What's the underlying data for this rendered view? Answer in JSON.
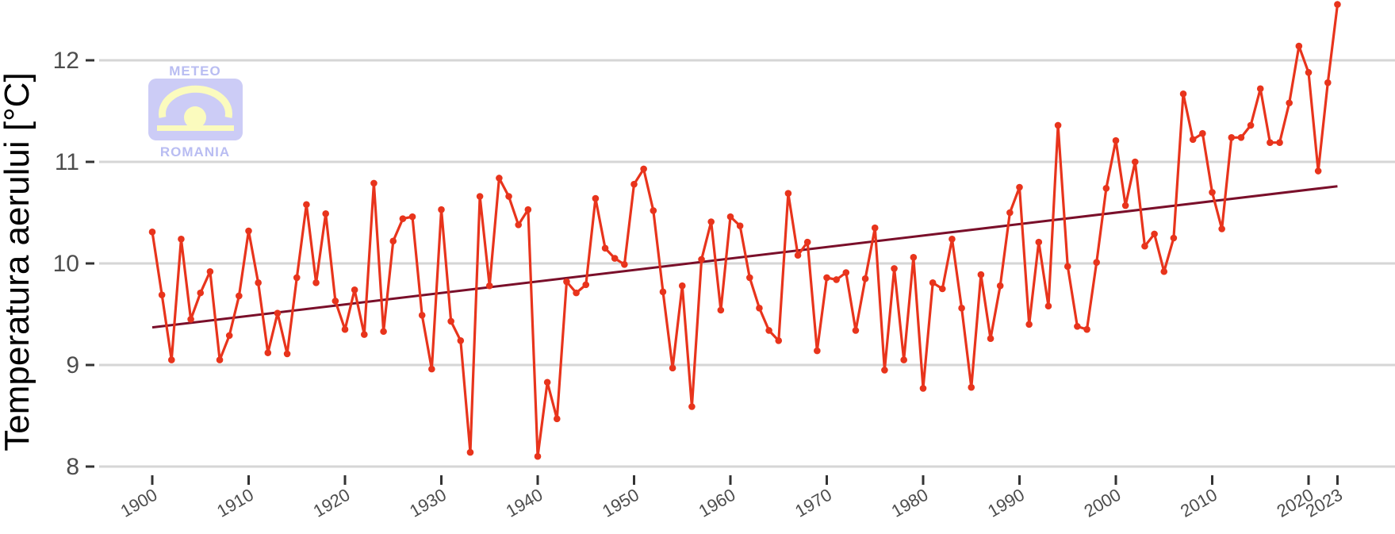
{
  "chart_data": {
    "type": "line",
    "title": "",
    "xlabel": "",
    "ylabel": "Temperatura aerului [°C]",
    "ylim": [
      8,
      12.5
    ],
    "yticks": [
      8,
      9,
      10,
      11,
      12
    ],
    "xticks": [
      1900,
      1910,
      1920,
      1930,
      1940,
      1950,
      1960,
      1970,
      1980,
      1990,
      2000,
      2010,
      2020,
      2023
    ],
    "grid": "horizontal",
    "x": [
      1900,
      1901,
      1902,
      1903,
      1904,
      1905,
      1906,
      1907,
      1908,
      1909,
      1910,
      1911,
      1912,
      1913,
      1914,
      1915,
      1916,
      1917,
      1918,
      1919,
      1920,
      1921,
      1922,
      1923,
      1924,
      1925,
      1926,
      1927,
      1928,
      1929,
      1930,
      1931,
      1932,
      1933,
      1934,
      1935,
      1936,
      1937,
      1938,
      1939,
      1940,
      1941,
      1942,
      1943,
      1944,
      1945,
      1946,
      1947,
      1948,
      1949,
      1950,
      1951,
      1952,
      1953,
      1954,
      1955,
      1956,
      1957,
      1958,
      1959,
      1960,
      1961,
      1962,
      1963,
      1964,
      1965,
      1966,
      1967,
      1968,
      1969,
      1970,
      1971,
      1972,
      1973,
      1974,
      1975,
      1976,
      1977,
      1978,
      1979,
      1980,
      1981,
      1982,
      1983,
      1984,
      1985,
      1986,
      1987,
      1988,
      1989,
      1990,
      1991,
      1992,
      1993,
      1994,
      1995,
      1996,
      1997,
      1998,
      1999,
      2000,
      2001,
      2002,
      2003,
      2004,
      2005,
      2006,
      2007,
      2008,
      2009,
      2010,
      2011,
      2012,
      2013,
      2014,
      2015,
      2016,
      2017,
      2018,
      2019,
      2020,
      2021,
      2022,
      2023
    ],
    "series": [
      {
        "values": [
          10.31,
          9.69,
          9.05,
          10.24,
          9.45,
          9.71,
          9.92,
          9.05,
          9.29,
          9.68,
          10.32,
          9.81,
          9.12,
          9.51,
          9.11,
          9.86,
          10.58,
          9.81,
          10.49,
          9.63,
          9.35,
          9.74,
          9.3,
          10.79,
          9.33,
          10.22,
          10.44,
          10.46,
          9.49,
          8.96,
          10.53,
          9.43,
          9.24,
          8.14,
          10.66,
          9.78,
          10.84,
          10.66,
          10.38,
          10.53,
          8.1,
          8.83,
          8.47,
          9.82,
          9.71,
          9.79,
          10.64,
          10.15,
          10.05,
          9.99,
          10.78,
          10.93,
          10.52,
          9.72,
          8.97,
          9.78,
          8.59,
          10.04,
          10.41,
          9.54,
          10.46,
          10.37,
          9.86,
          9.56,
          9.34,
          9.24,
          10.69,
          10.08,
          10.21,
          9.14,
          9.86,
          9.84,
          9.91,
          9.34,
          9.85,
          10.35,
          8.95,
          9.95,
          9.05,
          10.06,
          8.77,
          9.81,
          9.75,
          10.24,
          9.56,
          8.78,
          9.89,
          9.26,
          9.78,
          10.5,
          10.75,
          9.4,
          10.21,
          9.58,
          11.36,
          9.97,
          9.38,
          9.35,
          10.01,
          10.74,
          11.21,
          10.57,
          11.0,
          10.17,
          10.29,
          9.92,
          10.25,
          11.67,
          11.22,
          11.28,
          10.7,
          10.34,
          11.24,
          11.24,
          11.36,
          11.72,
          11.19,
          11.19,
          11.58,
          12.14,
          11.88,
          10.91,
          11.78,
          12.55
        ],
        "color": "#e8341c"
      }
    ],
    "trend": {
      "from": [
        1900,
        9.37
      ],
      "to": [
        2023,
        10.76
      ],
      "color": "#7a0f2a"
    }
  },
  "logo": {
    "top_text": "METEO",
    "bottom_text": "ROMANIA"
  }
}
